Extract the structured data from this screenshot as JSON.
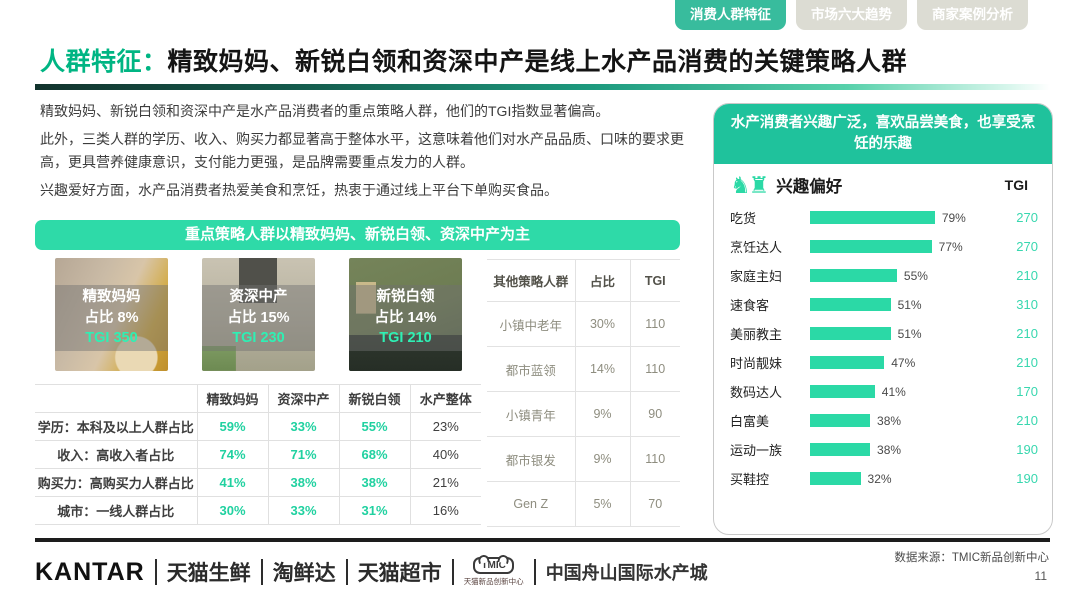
{
  "tabs": [
    {
      "label": "消费人群特征",
      "active": true
    },
    {
      "label": "市场六大趋势",
      "active": false
    },
    {
      "label": "商家案例分析",
      "active": false
    }
  ],
  "title": {
    "highlight": "人群特征：",
    "rest": "精致妈妈、新锐白领和资深中产是线上水产品消费的关键策略人群"
  },
  "intro": {
    "p1": "精致妈妈、新锐白领和资深中产是水产品消费者的重点策略人群，他们的TGI指数显著偏高。",
    "p2": "此外，三类人群的学历、收入、购买力都显著高于整体水平，这意味着他们对水产品品质、口味的要求更高，更具营养健康意识，支付能力更强，是品牌需要重点发力的人群。",
    "p3": "兴趣爱好方面，水产品消费者热爱美食和烹饪，热衷于通过线上平台下单购买食品。"
  },
  "banner": "重点策略人群以精致妈妈、新锐白领、资深中产为主",
  "personas": [
    {
      "name": "精致妈妈",
      "share": "占比 8%",
      "tgi": "TGI 350"
    },
    {
      "name": "资深中产",
      "share": "占比 15%",
      "tgi": "TGI 230"
    },
    {
      "name": "新锐白领",
      "share": "占比 14%",
      "tgi": "TGI 210"
    }
  ],
  "metrics_table": {
    "headers": [
      "",
      "精致妈妈",
      "资深中产",
      "新锐白领",
      "水产整体"
    ],
    "rows": [
      {
        "label": "学历：本科及以上人群占比",
        "values": [
          "59%",
          "33%",
          "55%",
          "23%"
        ]
      },
      {
        "label": "收入：高收入者占比",
        "values": [
          "74%",
          "71%",
          "68%",
          "40%"
        ]
      },
      {
        "label": "购买力：高购买力人群占比",
        "values": [
          "41%",
          "38%",
          "38%",
          "21%"
        ]
      },
      {
        "label": "城市：一线人群占比",
        "values": [
          "30%",
          "33%",
          "31%",
          "16%"
        ]
      }
    ]
  },
  "other_segments_table": {
    "headers": [
      "其他策略人群",
      "占比",
      "TGI"
    ],
    "rows": [
      [
        "小镇中老年",
        "30%",
        "110"
      ],
      [
        "都市蓝领",
        "14%",
        "110"
      ],
      [
        "小镇青年",
        "9%",
        "90"
      ],
      [
        "都市银发",
        "9%",
        "110"
      ],
      [
        "Gen Z",
        "5%",
        "70"
      ]
    ]
  },
  "interest_panel": {
    "header": "水产消费者兴趣广泛，喜欢品尝美食，也享受烹饪的乐趣",
    "icon_name": "chess-pieces-icon",
    "icon_glyphs": "♞♜",
    "title": "兴趣偏好",
    "tgi_label": "TGI"
  },
  "chart_data": {
    "type": "bar",
    "title": "兴趣偏好",
    "orientation": "horizontal",
    "categories": [
      "吃货",
      "烹饪达人",
      "家庭主妇",
      "速食客",
      "美丽教主",
      "时尚靓妹",
      "数码达人",
      "白富美",
      "运动一族",
      "买鞋控"
    ],
    "values": [
      79,
      77,
      55,
      51,
      51,
      47,
      41,
      38,
      38,
      32
    ],
    "value_suffix": "%",
    "tgi": [
      270,
      270,
      210,
      310,
      210,
      210,
      170,
      210,
      190,
      190
    ],
    "xlabel": "",
    "ylabel": "",
    "xlim": [
      0,
      100
    ],
    "grid": false,
    "legend": "none",
    "bar_color": "#2bd9a6"
  },
  "footer": {
    "logos": [
      "KANTAR",
      "天猫生鲜",
      "淘鲜达",
      "天猫超市"
    ],
    "tmic_badge": "TMIC",
    "tmic_caption": "天猫新品创新中心",
    "zhoushan": "中国舟山国际水产城",
    "source": "数据来源：TMIC新品创新中心",
    "page": "11"
  },
  "colors": {
    "tab_active": "#38bc9d",
    "title_green": "#00b583",
    "banner_green": "#2edaa8",
    "panel_header_green": "#1fc29c",
    "bar_green": "#2bd9a6",
    "tgi_text": "#38d7af",
    "table_value_green": "#20d1a0"
  }
}
